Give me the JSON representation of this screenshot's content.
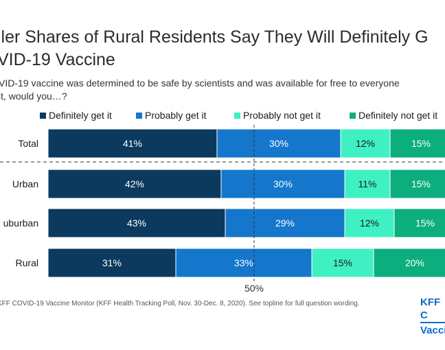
{
  "title": "ller Shares of Rural Residents Say They Will Definitely G\nVID-19 Vaccine",
  "subtitle": "VID-19 vaccine was determined to be safe by scientists and was available for free to everyone\nit, would you…?",
  "footnote": "KFF COVID-19 Vaccine Monitor (KFF Health Tracking Poll, Nov. 30-Dec. 8, 2020). See topline for full question wording.",
  "logo": {
    "line1": "KFF C",
    "line2": "Vacci"
  },
  "chart_data": {
    "type": "bar",
    "orientation": "horizontal",
    "stacked": true,
    "categories": [
      "Total",
      "Urban",
      "uburban",
      "Rural"
    ],
    "series": [
      {
        "name": "Definitely get it",
        "color": "#0b3a5e",
        "values": [
          41,
          42,
          43,
          31
        ],
        "labels": [
          "41%",
          "42%",
          "43%",
          "31%"
        ]
      },
      {
        "name": "Probably get it",
        "color": "#1477cc",
        "values": [
          30,
          30,
          29,
          33
        ],
        "labels": [
          "30%",
          "30%",
          "29%",
          "33%"
        ]
      },
      {
        "name": "Probably not get it",
        "color": "#3ff0c2",
        "values": [
          12,
          11,
          12,
          15
        ],
        "labels": [
          "12%",
          "11%",
          "12%",
          "15%"
        ]
      },
      {
        "name": "Definitely not get it",
        "color": "#0dae7e",
        "values": [
          15,
          15,
          15,
          20
        ],
        "labels": [
          "15%",
          "15%",
          "15%",
          "20%"
        ]
      }
    ],
    "xlim": [
      0,
      100
    ],
    "reference_line": {
      "value": 50,
      "label": "50%"
    },
    "legend_position": "top"
  }
}
